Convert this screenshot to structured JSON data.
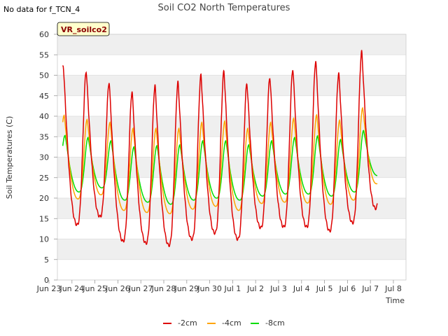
{
  "no_data_text": "No data for f_TCN_4",
  "badge_label": "VR_soilco2",
  "chart_data": {
    "type": "line",
    "title": "Soil CO2 North Temperatures",
    "xlabel": "Time",
    "ylabel": "Soil Temperatures (C)",
    "ylim": [
      0,
      60
    ],
    "yticks": [
      0,
      5,
      10,
      15,
      20,
      25,
      30,
      35,
      40,
      45,
      50,
      55,
      60
    ],
    "xlim": [
      0,
      15
    ],
    "xticks": [
      {
        "v": 0,
        "label": "Jun 23"
      },
      {
        "v": 1,
        "label": "Jun 24"
      },
      {
        "v": 2,
        "label": "Jun 25"
      },
      {
        "v": 3,
        "label": "Jun 26"
      },
      {
        "v": 4,
        "label": "Jun 27"
      },
      {
        "v": 5,
        "label": "Jun 28"
      },
      {
        "v": 6,
        "label": "Jun 29"
      },
      {
        "v": 7,
        "label": "Jun 30"
      },
      {
        "v": 8,
        "label": "Jul 1"
      },
      {
        "v": 9,
        "label": "Jul 2"
      },
      {
        "v": 10,
        "label": "Jul 3"
      },
      {
        "v": 11,
        "label": "Jul 4"
      },
      {
        "v": 12,
        "label": "Jul 5"
      },
      {
        "v": 13,
        "label": "Jul 6"
      },
      {
        "v": 14,
        "label": "Jul 7"
      },
      {
        "v": 15,
        "label": "Jul 8"
      }
    ],
    "grid": "horizontal bands",
    "legend_position": "bottom",
    "x_unit": "days since Jun 23",
    "series": [
      {
        "name": "-2cm",
        "color": "#dd0000",
        "peaks": [
          52.5,
          51.0,
          48.3,
          46.0,
          47.5,
          48.3,
          50.0,
          51.0,
          48.0,
          49.5,
          51.5,
          53.5,
          50.5,
          55.8
        ],
        "troughs": [
          19.0,
          13.5,
          15.5,
          9.5,
          9.0,
          8.5,
          10.0,
          11.5,
          10.0,
          12.8,
          13.0,
          13.0,
          12.0,
          14.0,
          17.5
        ]
      },
      {
        "name": "-4cm",
        "color": "#ffa500",
        "peaks": [
          40.2,
          39.2,
          38.5,
          37.0,
          37.0,
          37.0,
          38.5,
          38.8,
          37.0,
          38.5,
          39.5,
          40.3,
          39.0,
          42.0
        ],
        "troughs": [
          23.5,
          19.8,
          20.8,
          17.0,
          16.5,
          16.2,
          17.3,
          18.0,
          17.0,
          18.7,
          19.0,
          18.8,
          18.5,
          19.5,
          23.5
        ]
      },
      {
        "name": "-8cm",
        "color": "#00dd00",
        "peaks": [
          35.3,
          34.8,
          34.0,
          32.5,
          32.8,
          33.0,
          34.0,
          34.0,
          33.0,
          34.0,
          34.8,
          35.2,
          34.3,
          36.5
        ],
        "troughs": [
          25.0,
          21.5,
          22.5,
          19.5,
          19.0,
          18.5,
          19.5,
          20.0,
          19.5,
          20.5,
          21.0,
          21.0,
          20.5,
          21.5,
          25.5
        ]
      }
    ]
  }
}
